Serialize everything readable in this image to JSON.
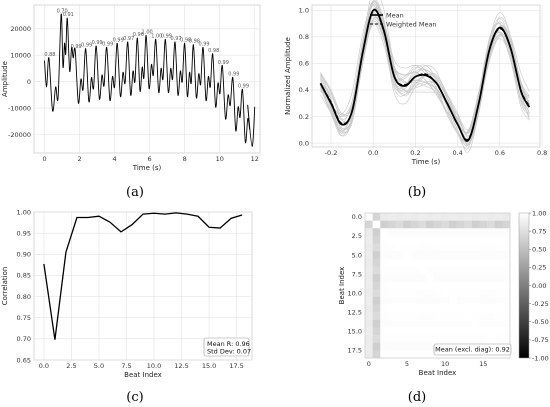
{
  "panel_labels": [
    "(a)",
    "(b)",
    "(c)",
    "(d)"
  ],
  "chart_data": [
    {
      "type": "line",
      "xlabel": "Time (s)",
      "ylabel": "Amplitude",
      "xlim": [
        -0.6,
        12.3
      ],
      "ylim": [
        -27000,
        29000
      ],
      "xticks": [
        0,
        2,
        4,
        6,
        8,
        10,
        12
      ],
      "yticks": [
        -20000,
        -10000,
        0,
        10000,
        20000
      ],
      "grid": true,
      "peaks": [
        {
          "x": 0.25,
          "y": 9000,
          "label": "0.88"
        },
        {
          "x": 0.95,
          "y": 25500,
          "label": "0.70"
        },
        {
          "x": 1.3,
          "y": 24000,
          "label": "0.91"
        },
        {
          "x": 1.75,
          "y": 12000,
          "label": "0.99"
        },
        {
          "x": 2.35,
          "y": 12500,
          "label": "0.99"
        },
        {
          "x": 2.95,
          "y": 13500,
          "label": "0.99"
        },
        {
          "x": 3.55,
          "y": 13000,
          "label": "0.99"
        },
        {
          "x": 4.15,
          "y": 14500,
          "label": "0.99"
        },
        {
          "x": 4.75,
          "y": 15000,
          "label": "0.97"
        },
        {
          "x": 5.3,
          "y": 16500,
          "label": "0.96"
        },
        {
          "x": 5.8,
          "y": 17500,
          "label": "1.00"
        },
        {
          "x": 6.35,
          "y": 16000,
          "label": "1.00"
        },
        {
          "x": 6.9,
          "y": 16000,
          "label": "0.99"
        },
        {
          "x": 7.45,
          "y": 15000,
          "label": "0.97"
        },
        {
          "x": 8.0,
          "y": 14500,
          "label": "0.98"
        },
        {
          "x": 8.5,
          "y": 14000,
          "label": "0.98"
        },
        {
          "x": 9.05,
          "y": 13000,
          "label": "0.99"
        },
        {
          "x": 9.6,
          "y": 10500,
          "label": "0.98"
        },
        {
          "x": 10.15,
          "y": 6000,
          "label": "0.99"
        },
        {
          "x": 10.75,
          "y": 1500,
          "label": "0.99"
        },
        {
          "x": 11.3,
          "y": -3000,
          "label": "0.99"
        }
      ]
    },
    {
      "type": "line",
      "xlabel": "Time (s)",
      "ylabel": "Normalized Amplitude",
      "xlim": [
        -0.29,
        0.79
      ],
      "ylim": [
        -0.03,
        1.04
      ],
      "xticks": [
        -0.2,
        0.0,
        0.2,
        0.4,
        0.6,
        0.8
      ],
      "yticks": [
        0.0,
        0.2,
        0.4,
        0.6,
        0.8,
        1.0
      ],
      "grid": true,
      "legend_position": "top-center",
      "series": [
        {
          "name": "Mean",
          "style": "solid",
          "x": [
            -0.25,
            -0.2,
            -0.15,
            -0.1,
            -0.05,
            0.0,
            0.05,
            0.1,
            0.15,
            0.2,
            0.25,
            0.3,
            0.35,
            0.4,
            0.45,
            0.5,
            0.55,
            0.6,
            0.65,
            0.7,
            0.74
          ],
          "y": [
            0.45,
            0.3,
            0.14,
            0.24,
            0.68,
            1.0,
            0.85,
            0.5,
            0.43,
            0.5,
            0.51,
            0.45,
            0.3,
            0.14,
            0.02,
            0.3,
            0.7,
            0.87,
            0.72,
            0.39,
            0.27
          ]
        },
        {
          "name": "Weighted Mean",
          "style": "dashed",
          "x": [
            -0.25,
            -0.2,
            -0.15,
            -0.1,
            -0.05,
            0.0,
            0.05,
            0.1,
            0.15,
            0.2,
            0.25,
            0.3,
            0.35,
            0.4,
            0.45,
            0.5,
            0.55,
            0.6,
            0.65,
            0.7,
            0.74
          ],
          "y": [
            0.45,
            0.31,
            0.15,
            0.24,
            0.68,
            1.0,
            0.84,
            0.5,
            0.44,
            0.5,
            0.52,
            0.45,
            0.3,
            0.14,
            0.03,
            0.3,
            0.7,
            0.86,
            0.72,
            0.4,
            0.28
          ]
        }
      ],
      "individual_beats_count": 19
    },
    {
      "type": "line",
      "xlabel": "Beat Index",
      "ylabel": "Correlation",
      "xlim": [
        -0.9,
        18.9
      ],
      "ylim": [
        0.65,
        1.0
      ],
      "xticks": [
        0.0,
        2.5,
        5.0,
        7.5,
        10.0,
        12.5,
        15.0,
        17.5
      ],
      "yticks": [
        0.65,
        0.7,
        0.75,
        0.8,
        0.85,
        0.9,
        0.95,
        1.0
      ],
      "grid": true,
      "x": [
        0,
        1,
        2,
        3,
        4,
        5,
        6,
        7,
        8,
        9,
        10,
        11,
        12,
        13,
        14,
        15,
        16,
        17,
        18
      ],
      "y": [
        0.877,
        0.698,
        0.905,
        0.987,
        0.987,
        0.99,
        0.976,
        0.953,
        0.97,
        0.995,
        0.997,
        0.995,
        0.998,
        0.995,
        0.99,
        0.964,
        0.962,
        0.985,
        0.993
      ],
      "stats_box": {
        "line1": "Mean R: 0.96",
        "line2": "Std Dev: 0.07"
      }
    },
    {
      "type": "heatmap",
      "xlabel": "Beat Index",
      "ylabel": "Beat Index",
      "size": 19,
      "xticks": [
        0,
        5,
        10,
        15
      ],
      "yticks": [
        0.0,
        2.5,
        5.0,
        7.5,
        10.0,
        12.5,
        15.0,
        17.5
      ],
      "colorbar_ticks": [
        1.0,
        0.75,
        0.5,
        0.25,
        0.0,
        -0.25,
        -0.5,
        -0.75,
        -1.0
      ],
      "vmin": -1.0,
      "vmax": 1.0,
      "beat_correlation": [
        0.877,
        0.698,
        0.905,
        0.987,
        0.987,
        0.99,
        0.976,
        0.953,
        0.97,
        0.995,
        0.997,
        0.995,
        0.998,
        0.995,
        0.99,
        0.964,
        0.962,
        0.985,
        0.993
      ],
      "annotation": "Mean (excl. diag): 0.92"
    }
  ]
}
